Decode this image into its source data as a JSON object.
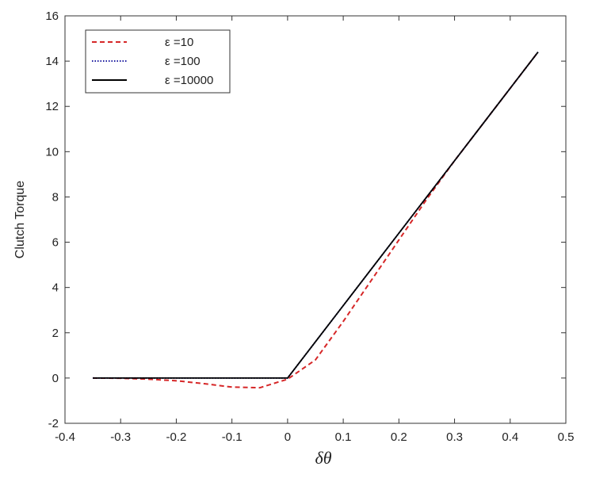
{
  "chart_data": {
    "type": "line",
    "x_label": "δθ",
    "y_label": "Clutch Torque",
    "x": [
      -0.35,
      -0.3,
      -0.25,
      -0.2,
      -0.15,
      -0.1,
      -0.05,
      0,
      0.05,
      0.1,
      0.15,
      0.2,
      0.25,
      0.3,
      0.35,
      0.4,
      0.45
    ],
    "series": [
      {
        "name": "ε =10",
        "color": "#d62728",
        "dash": "dashed",
        "values": [
          0,
          -0.01,
          -0.05,
          -0.12,
          -0.25,
          -0.4,
          -0.43,
          -0.05,
          0.8,
          2.5,
          4.3,
          6.1,
          7.9,
          9.6,
          11.2,
          12.8,
          14.4
        ]
      },
      {
        "name": "ε =100",
        "color": "#1f1fa0",
        "dash": "dotted",
        "values": [
          0,
          0,
          0,
          0,
          0,
          0,
          0,
          0,
          1.6,
          3.2,
          4.8,
          6.4,
          8,
          9.6,
          11.2,
          12.8,
          14.4
        ]
      },
      {
        "name": "ε =10000",
        "color": "#000000",
        "dash": "solid",
        "values": [
          0,
          0,
          0,
          0,
          0,
          0,
          0,
          0,
          1.6,
          3.2,
          4.8,
          6.4,
          8,
          9.6,
          11.2,
          12.8,
          14.4
        ]
      }
    ],
    "xlim": [
      -0.4,
      0.5
    ],
    "xticks": [
      -0.4,
      -0.3,
      -0.2,
      -0.1,
      0,
      0.1,
      0.2,
      0.3,
      0.4,
      0.5
    ],
    "ylim": [
      -2,
      16
    ],
    "yticks": [
      -2,
      0,
      2,
      4,
      6,
      8,
      10,
      12,
      14,
      16
    ],
    "legend": "upper-left"
  }
}
